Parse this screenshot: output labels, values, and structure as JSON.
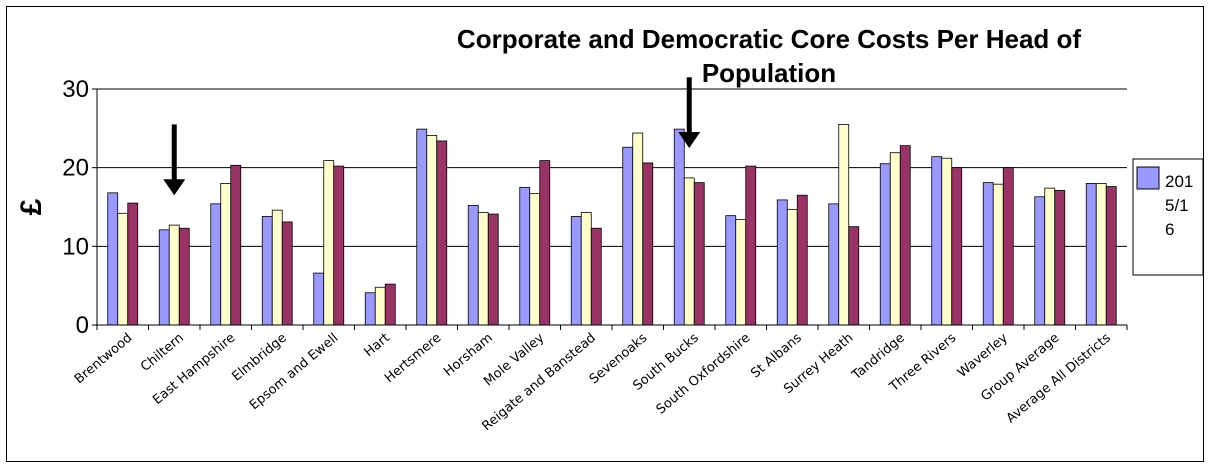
{
  "chart_data": {
    "type": "bar",
    "title_lines": [
      "Corporate and Democratic Core Costs Per Head of",
      "Population"
    ],
    "ylabel": "£",
    "xlabel": "",
    "ylim": [
      0,
      30
    ],
    "yticks": [
      "0",
      "10",
      "20",
      "30"
    ],
    "grid": "horizontal",
    "legend_position": "right",
    "categories": [
      "Brentwood",
      "Chiltern",
      "East Hampshire",
      "Elmbridge",
      "Epsom and Ewell",
      "Hart",
      "Hertsmere",
      "Horsham",
      "Mole Valley",
      "Reigate and Banstead",
      "Sevenoaks",
      "South Bucks",
      "South Oxfordshire",
      "St Albans",
      "Surrey Heath",
      "Tandridge",
      "Three Rivers",
      "Waverley",
      "Group Average",
      "Average All Districts"
    ],
    "series": [
      {
        "values": [
          16.8,
          12.1,
          15.4,
          13.8,
          6.6,
          4.1,
          24.9,
          15.2,
          17.5,
          13.8,
          22.6,
          24.9,
          13.9,
          15.9,
          15.4,
          20.5,
          21.4,
          18.1,
          16.3,
          18.0
        ],
        "color": "#9999ff"
      },
      {
        "values": [
          14.2,
          12.7,
          18.0,
          14.6,
          20.9,
          4.8,
          24.1,
          14.3,
          16.7,
          14.3,
          24.4,
          18.7,
          13.4,
          14.7,
          25.5,
          21.9,
          21.2,
          17.9,
          17.4,
          18.0
        ],
        "color": "#ffffcc"
      },
      {
        "values": [
          15.5,
          12.3,
          20.3,
          13.1,
          20.2,
          5.2,
          23.4,
          14.1,
          20.9,
          12.3,
          20.6,
          18.1,
          20.2,
          16.5,
          12.5,
          22.8,
          20.0,
          20.0,
          17.1,
          17.6
        ],
        "color": "#993366"
      }
    ],
    "arrows": [
      {
        "category": "Chiltern",
        "y_top": 25.5,
        "y_bottom": 16.5
      },
      {
        "category": "South Bucks",
        "y_top": 31.5,
        "y_bottom": 22.5
      }
    ],
    "legend": {
      "lines": [
        "201",
        "5/1",
        "6"
      ],
      "color": "#9999ff"
    }
  }
}
